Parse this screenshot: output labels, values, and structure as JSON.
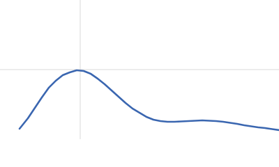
{
  "chart_data": {
    "type": "line",
    "x": [
      0.28,
      0.4,
      0.5,
      0.6,
      0.7,
      0.8,
      0.9,
      1.0,
      1.1,
      1.2,
      1.3,
      1.4,
      1.5,
      1.6,
      1.7,
      1.8,
      1.9,
      2.0,
      2.1,
      2.2,
      2.3,
      2.4,
      2.5,
      2.6,
      2.7,
      2.8,
      2.9,
      3.0,
      3.1,
      3.2,
      3.3,
      3.4,
      3.5,
      3.6,
      3.7,
      3.8,
      3.9,
      4.0
    ],
    "series": [
      {
        "color": "#3a66b0",
        "values": [
          0.15,
          0.3,
          0.45,
          0.6,
          0.74,
          0.84,
          0.92,
          0.96,
          0.99,
          0.98,
          0.94,
          0.87,
          0.79,
          0.7,
          0.61,
          0.52,
          0.44,
          0.38,
          0.32,
          0.28,
          0.26,
          0.25,
          0.25,
          0.255,
          0.26,
          0.265,
          0.27,
          0.265,
          0.26,
          0.25,
          0.235,
          0.22,
          0.2,
          0.185,
          0.17,
          0.16,
          0.145,
          0.13
        ]
      }
    ],
    "xlim": [
      0,
      4
    ],
    "ylim": [
      0,
      2
    ],
    "xticks": [
      1.15
    ],
    "yticks": [
      1
    ],
    "grid": true
  }
}
